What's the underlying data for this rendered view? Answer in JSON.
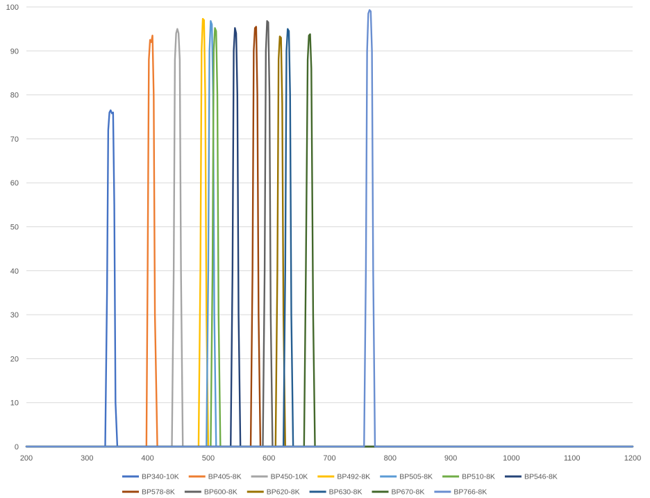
{
  "chart_data": {
    "type": "line",
    "title": "",
    "xlabel": "",
    "ylabel": "",
    "xlim": [
      200,
      1200
    ],
    "ylim": [
      0,
      100
    ],
    "x_ticks": [
      200,
      300,
      400,
      500,
      600,
      700,
      800,
      900,
      1000,
      1100,
      1200
    ],
    "y_ticks": [
      0,
      10,
      20,
      30,
      40,
      50,
      60,
      70,
      80,
      90,
      100
    ],
    "grid": "horizontal",
    "legend_position": "bottom",
    "series": [
      {
        "name": "BP340-10K",
        "color": "#4472C4",
        "x": [
          200,
          330,
          333,
          335,
          337,
          339,
          341,
          343,
          345,
          347,
          350,
          1200
        ],
        "y": [
          0,
          0,
          35,
          72,
          76,
          76.5,
          75.8,
          76,
          55,
          10,
          0,
          0
        ]
      },
      {
        "name": "BP405-8K",
        "color": "#ED7D31",
        "x": [
          200,
          398,
          400,
          402,
          404,
          406,
          408,
          410,
          412,
          416,
          1200
        ],
        "y": [
          0,
          0,
          40,
          88,
          92.5,
          92,
          93.5,
          80,
          30,
          0,
          0
        ]
      },
      {
        "name": "BP450-10K",
        "color": "#A5A5A5",
        "x": [
          200,
          440,
          443,
          445,
          447,
          449,
          451,
          453,
          455,
          458,
          1200
        ],
        "y": [
          0,
          0,
          40,
          88,
          94,
          95,
          94,
          88,
          40,
          0,
          0
        ]
      },
      {
        "name": "BP492-8K",
        "color": "#FFC000",
        "x": [
          200,
          484,
          487,
          489,
          491,
          493,
          495,
          497,
          500,
          1200
        ],
        "y": [
          0,
          0,
          40,
          90,
          97.3,
          97,
          80,
          30,
          0,
          0
        ]
      },
      {
        "name": "BP505-8K",
        "color": "#5B9BD5",
        "x": [
          200,
          497,
          500,
          502,
          504,
          506,
          508,
          510,
          513,
          1200
        ],
        "y": [
          0,
          0,
          40,
          90,
          96.8,
          96,
          80,
          30,
          0,
          0
        ]
      },
      {
        "name": "BP510-8K",
        "color": "#70AD47",
        "x": [
          200,
          504,
          507,
          509,
          511,
          513,
          515,
          517,
          520,
          1200
        ],
        "y": [
          0,
          0,
          40,
          90,
          95.2,
          94.5,
          80,
          30,
          0,
          0
        ]
      },
      {
        "name": "BP546-8K",
        "color": "#264478",
        "x": [
          200,
          537,
          540,
          542,
          544,
          546,
          548,
          550,
          553,
          1200
        ],
        "y": [
          0,
          0,
          40,
          90,
          95.2,
          94,
          80,
          30,
          0,
          0
        ]
      },
      {
        "name": "BP578-8K",
        "color": "#9E480E",
        "x": [
          200,
          570,
          573,
          575,
          577,
          579,
          581,
          583,
          586,
          1200
        ],
        "y": [
          0,
          0,
          40,
          90,
          95.2,
          95.5,
          80,
          30,
          0,
          0
        ]
      },
      {
        "name": "BP600-8K",
        "color": "#636363",
        "x": [
          200,
          590,
          593,
          595,
          597,
          599,
          601,
          603,
          606,
          1200
        ],
        "y": [
          0,
          0,
          40,
          90,
          96.8,
          96.5,
          80,
          30,
          0,
          0
        ]
      },
      {
        "name": "BP620-8K",
        "color": "#997300",
        "x": [
          200,
          611,
          614,
          616,
          618,
          620,
          622,
          624,
          627,
          1200
        ],
        "y": [
          0,
          0,
          40,
          88,
          93.3,
          93,
          78,
          30,
          0,
          0
        ]
      },
      {
        "name": "BP630-8K",
        "color": "#255E91",
        "x": [
          200,
          624,
          627,
          629,
          631,
          633,
          635,
          637,
          640,
          1200
        ],
        "y": [
          0,
          0,
          40,
          90,
          95,
          94.5,
          80,
          30,
          0,
          0
        ]
      },
      {
        "name": "BP670-8K",
        "color": "#43682B",
        "x": [
          200,
          658,
          661,
          664,
          666,
          668,
          670,
          673,
          676,
          1200
        ],
        "y": [
          0,
          0,
          40,
          88,
          93.5,
          93.8,
          86,
          30,
          0,
          0
        ]
      },
      {
        "name": "BP766-8K",
        "color": "#698ED0",
        "x": [
          200,
          757,
          760,
          762,
          764,
          766,
          768,
          770,
          772,
          775,
          1200
        ],
        "y": [
          0,
          0,
          40,
          90,
          98.5,
          99.3,
          99,
          90,
          40,
          0,
          0
        ]
      }
    ]
  }
}
